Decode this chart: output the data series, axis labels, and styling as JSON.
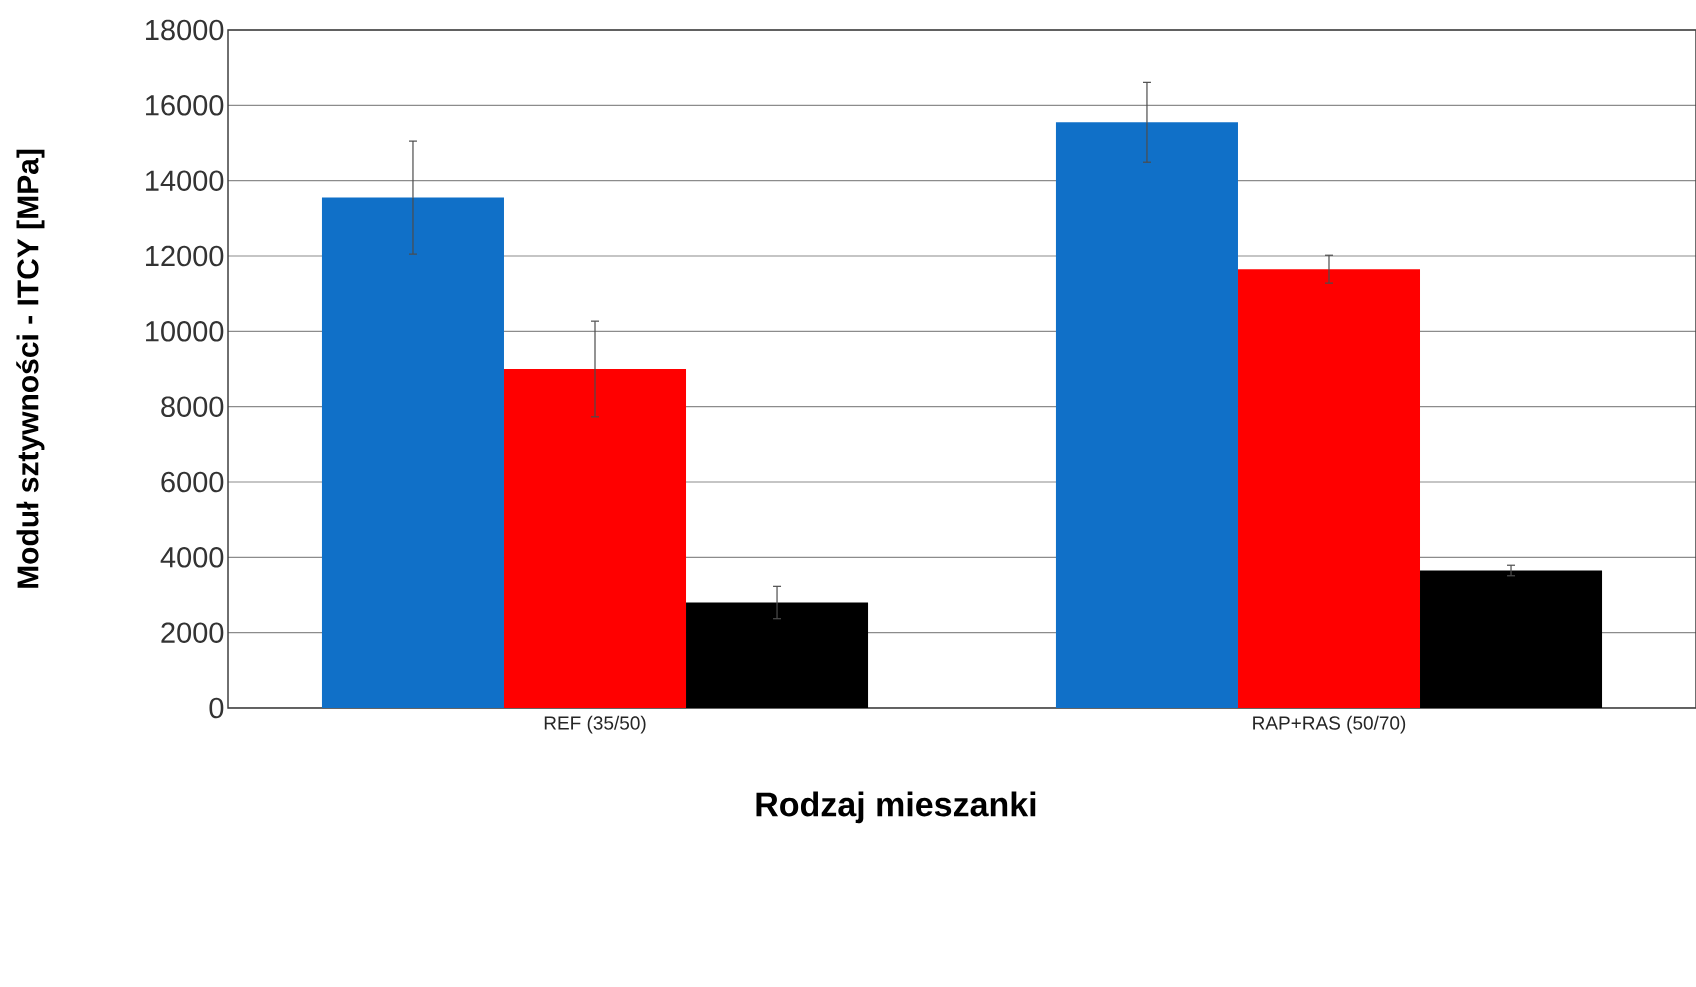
{
  "chart_data": {
    "type": "bar",
    "xlabel": "Rodzaj mieszanki",
    "ylabel": "Moduł sztywności - ITCY [MPa]",
    "categories": [
      "REF (35/50)",
      "RAP+RAS (50/70)"
    ],
    "series": [
      {
        "color": "#1070c8",
        "values": [
          13550,
          15550
        ],
        "errors": [
          1500,
          1060
        ]
      },
      {
        "color": "#ff0000",
        "values": [
          9000,
          11650
        ],
        "errors": [
          1270,
          370
        ]
      },
      {
        "color": "#000000",
        "values": [
          2800,
          3650
        ],
        "errors": [
          430,
          140
        ]
      }
    ],
    "ylim": [
      0,
      18000
    ],
    "yticks": [
      0,
      2000,
      4000,
      6000,
      8000,
      10000,
      12000,
      14000,
      16000,
      18000
    ],
    "grid": "y"
  }
}
